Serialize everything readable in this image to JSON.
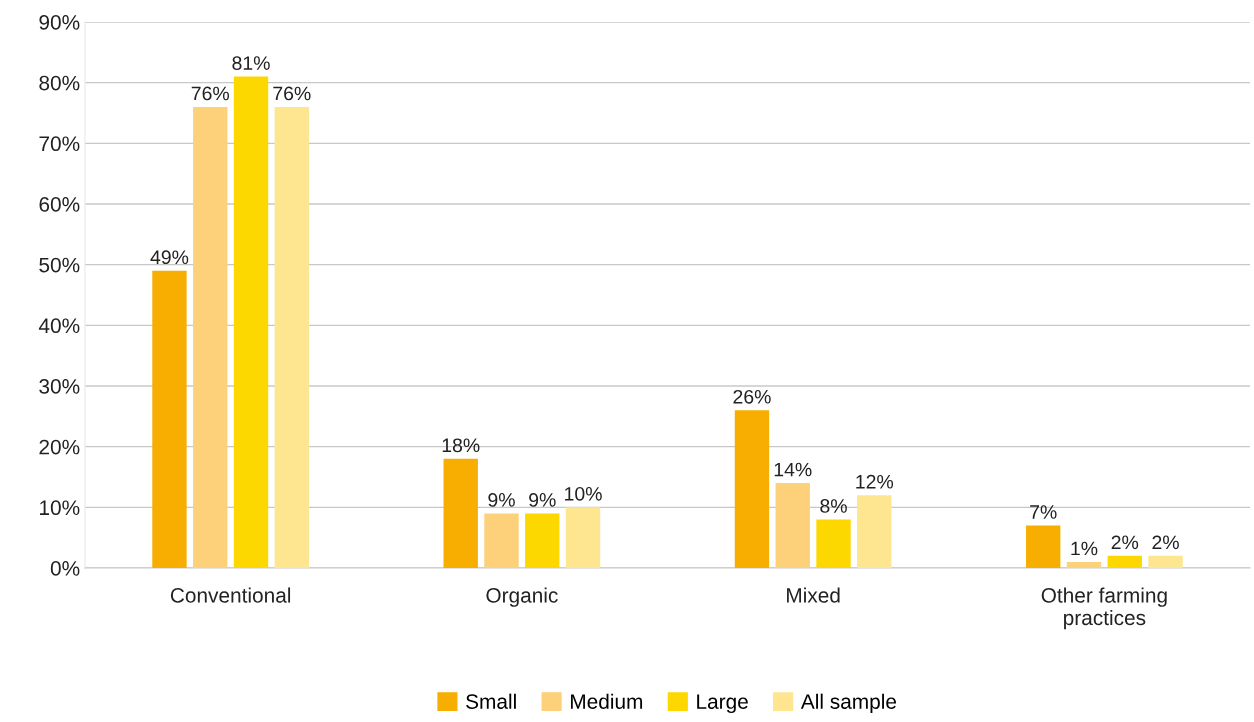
{
  "chart_data": {
    "type": "bar",
    "categories": [
      "Conventional",
      "Organic",
      "Mixed",
      "Other farming practices"
    ],
    "series": [
      {
        "name": "Small",
        "color": "#f7ae00",
        "values": [
          49,
          18,
          26,
          7
        ],
        "value_labels": [
          "49%",
          "18%",
          "26%",
          "7%"
        ]
      },
      {
        "name": "Medium",
        "color": "#fdd07a",
        "values": [
          76,
          9,
          14,
          1
        ],
        "value_labels": [
          "76%",
          "9%",
          "14%",
          "1%"
        ]
      },
      {
        "name": "Large",
        "color": "#fdd800",
        "values": [
          81,
          9,
          8,
          2
        ],
        "value_labels": [
          "81%",
          "9%",
          "8%",
          "2%"
        ]
      },
      {
        "name": "All sample",
        "color": "#fde68f",
        "values": [
          76,
          10,
          12,
          2
        ],
        "value_labels": [
          "76%",
          "10%",
          "12%",
          "2%"
        ]
      }
    ],
    "ylim": [
      0,
      90
    ],
    "yticks": [
      {
        "value": 0,
        "label": "0%"
      },
      {
        "value": 10,
        "label": "10%"
      },
      {
        "value": 20,
        "label": "20%"
      },
      {
        "value": 30,
        "label": "30%"
      },
      {
        "value": 40,
        "label": "40%"
      },
      {
        "value": 50,
        "label": "50%"
      },
      {
        "value": 60,
        "label": "60%"
      },
      {
        "value": 70,
        "label": "70%"
      },
      {
        "value": 80,
        "label": "80%"
      },
      {
        "value": 90,
        "label": "90%"
      }
    ],
    "grid": "y",
    "legend": "bottom"
  }
}
